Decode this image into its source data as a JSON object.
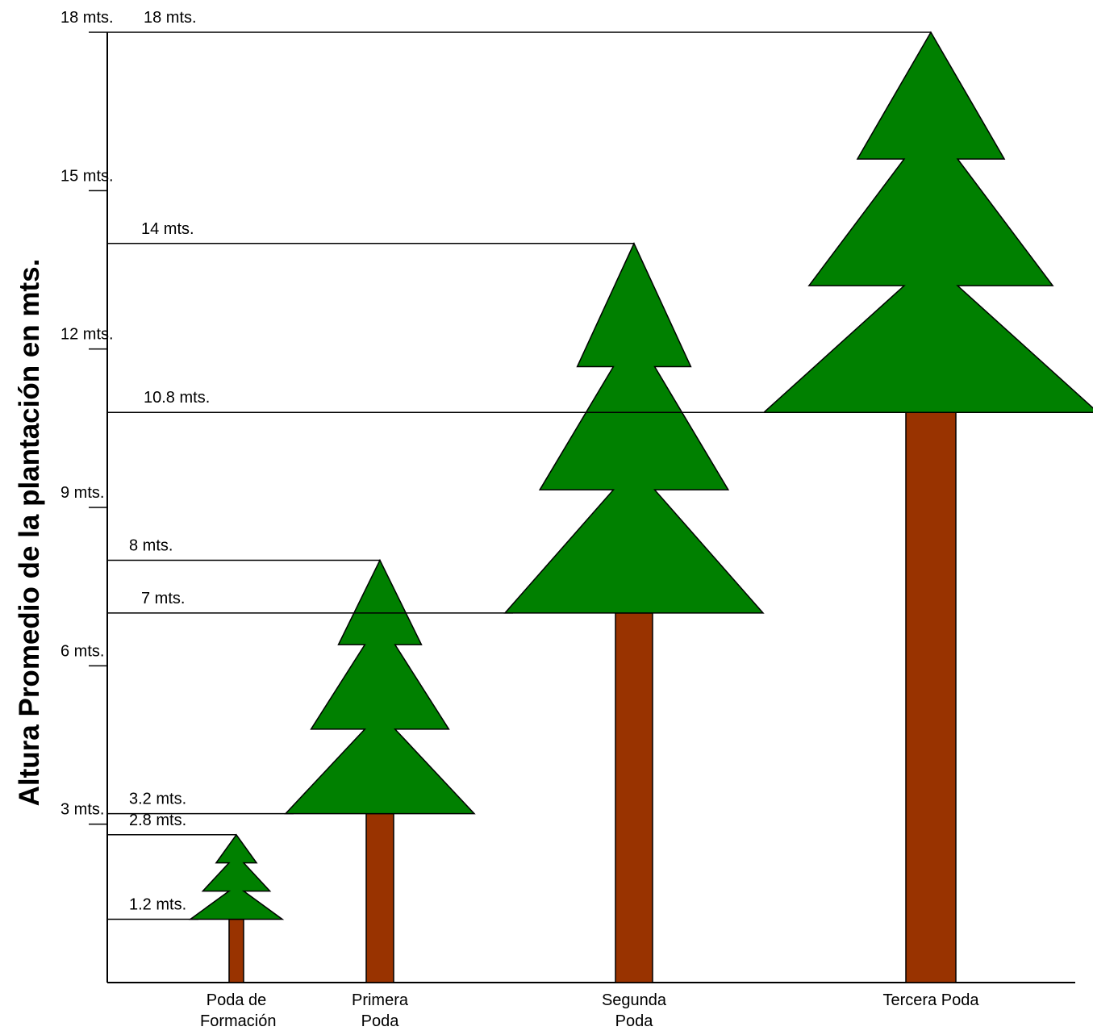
{
  "chart_data": {
    "type": "tree",
    "y_label": "Altura Promedio de la plantación en mts.",
    "categories": [
      "Poda de Formación",
      "Primera Poda",
      "Segunda Poda",
      "Tercera Poda"
    ],
    "series": [
      {
        "values": [
          1.2,
          3.2,
          7,
          10.8
        ],
        "value_labels": [
          "1.2 mts.",
          "3.2 mts.",
          "7 mts.",
          "10.8 mts."
        ],
        "color": "#993300"
      },
      {
        "values": [
          2.8,
          8,
          14,
          18
        ],
        "value_labels": [
          "2.8 mts.",
          "8 mts.",
          "14 mts.",
          "18 mts."
        ],
        "color": "#008000"
      }
    ],
    "ylim": [
      0,
      18
    ],
    "yticks": [
      {
        "value": 3,
        "label": "3 mts."
      },
      {
        "value": 6,
        "label": "6 mts."
      },
      {
        "value": 9,
        "label": "9 mts."
      },
      {
        "value": 12,
        "label": "12 mts."
      },
      {
        "value": 15,
        "label": "15 mts."
      },
      {
        "value": 18,
        "label": "18 mts."
      }
    ]
  }
}
